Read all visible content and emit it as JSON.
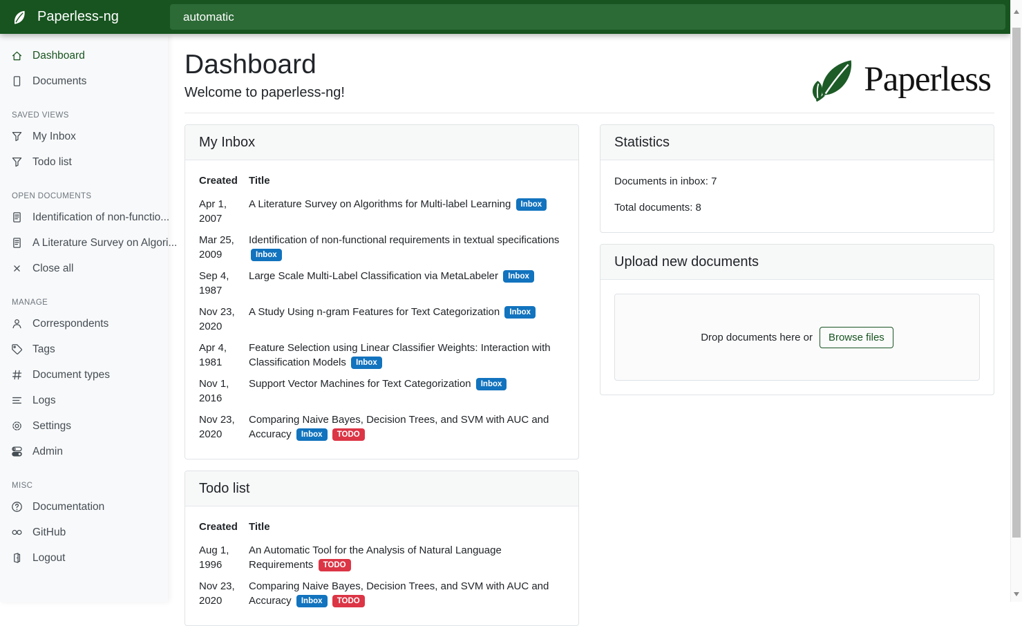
{
  "colors": {
    "brand_green": "#17541f",
    "search_bg": "#2c6a36",
    "logo_leaf_green": "#1d5b27",
    "inbox_tag_blue": "#1273be",
    "todo_tag_red": "#dc3545"
  },
  "navbar": {
    "brand": "Paperless-ng",
    "search_value": "automatic"
  },
  "sidebar": {
    "sections": [
      {
        "title": "",
        "items": [
          {
            "label": "Dashboard",
            "icon": "house-icon",
            "active": true
          },
          {
            "label": "Documents",
            "icon": "file-icon",
            "active": false
          }
        ]
      },
      {
        "title": "SAVED VIEWS",
        "items": [
          {
            "label": "My Inbox",
            "icon": "funnel-icon",
            "active": false
          },
          {
            "label": "Todo list",
            "icon": "funnel-icon",
            "active": false
          }
        ]
      },
      {
        "title": "OPEN DOCUMENTS",
        "items": [
          {
            "label": "Identification of non-functio...",
            "icon": "file-text-icon",
            "active": false
          },
          {
            "label": "A Literature Survey on Algori...",
            "icon": "file-text-icon",
            "active": false
          },
          {
            "label": "Close all",
            "icon": "x-icon",
            "active": false
          }
        ]
      },
      {
        "title": "MANAGE",
        "items": [
          {
            "label": "Correspondents",
            "icon": "person-icon",
            "active": false
          },
          {
            "label": "Tags",
            "icon": "tag-icon",
            "active": false
          },
          {
            "label": "Document types",
            "icon": "hash-icon",
            "active": false
          },
          {
            "label": "Logs",
            "icon": "list-icon",
            "active": false
          },
          {
            "label": "Settings",
            "icon": "gear-icon",
            "active": false
          },
          {
            "label": "Admin",
            "icon": "toggles-icon",
            "active": false
          }
        ]
      },
      {
        "title": "MISC",
        "items": [
          {
            "label": "Documentation",
            "icon": "question-circle-icon",
            "active": false
          },
          {
            "label": "GitHub",
            "icon": "link-icon",
            "active": false
          },
          {
            "label": "Logout",
            "icon": "door-icon",
            "active": false
          }
        ]
      }
    ]
  },
  "page": {
    "title": "Dashboard",
    "subtitle": "Welcome to paperless-ng!",
    "logo_text": "Paperless"
  },
  "tags": {
    "Inbox": "#1273be",
    "TODO": "#dc3545"
  },
  "cards": {
    "inbox": {
      "title": "My Inbox",
      "columns": [
        "Created",
        "Title"
      ],
      "rows": [
        {
          "created": "Apr 1, 2007",
          "title": "A Literature Survey on Algorithms for Multi-label Learning",
          "tags": [
            "Inbox"
          ]
        },
        {
          "created": "Mar 25, 2009",
          "title": "Identification of non-functional requirements in textual specifications",
          "tags": [
            "Inbox"
          ]
        },
        {
          "created": "Sep 4, 1987",
          "title": "Large Scale Multi-Label Classification via MetaLabeler",
          "tags": [
            "Inbox"
          ]
        },
        {
          "created": "Nov 23, 2020",
          "title": "A Study Using n-gram Features for Text Categorization",
          "tags": [
            "Inbox"
          ]
        },
        {
          "created": "Apr 4, 1981",
          "title": "Feature Selection using Linear Classifier Weights: Interaction with Classification Models",
          "tags": [
            "Inbox"
          ]
        },
        {
          "created": "Nov 1, 2016",
          "title": "Support Vector Machines for Text Categorization",
          "tags": [
            "Inbox"
          ]
        },
        {
          "created": "Nov 23, 2020",
          "title": "Comparing Naive Bayes, Decision Trees, and SVM with AUC and Accuracy",
          "tags": [
            "Inbox",
            "TODO"
          ]
        }
      ]
    },
    "todo": {
      "title": "Todo list",
      "columns": [
        "Created",
        "Title"
      ],
      "rows": [
        {
          "created": "Aug 1, 1996",
          "title": "An Automatic Tool for the Analysis of Natural Language Requirements",
          "tags": [
            "TODO"
          ]
        },
        {
          "created": "Nov 23, 2020",
          "title": "Comparing Naive Bayes, Decision Trees, and SVM with AUC and Accuracy",
          "tags": [
            "Inbox",
            "TODO"
          ]
        }
      ]
    },
    "statistics": {
      "title": "Statistics",
      "lines": [
        "Documents in inbox: 7",
        "Total documents: 8"
      ]
    },
    "upload": {
      "title": "Upload new documents",
      "drop_label": "Drop documents here or",
      "browse_label": "Browse files"
    }
  }
}
